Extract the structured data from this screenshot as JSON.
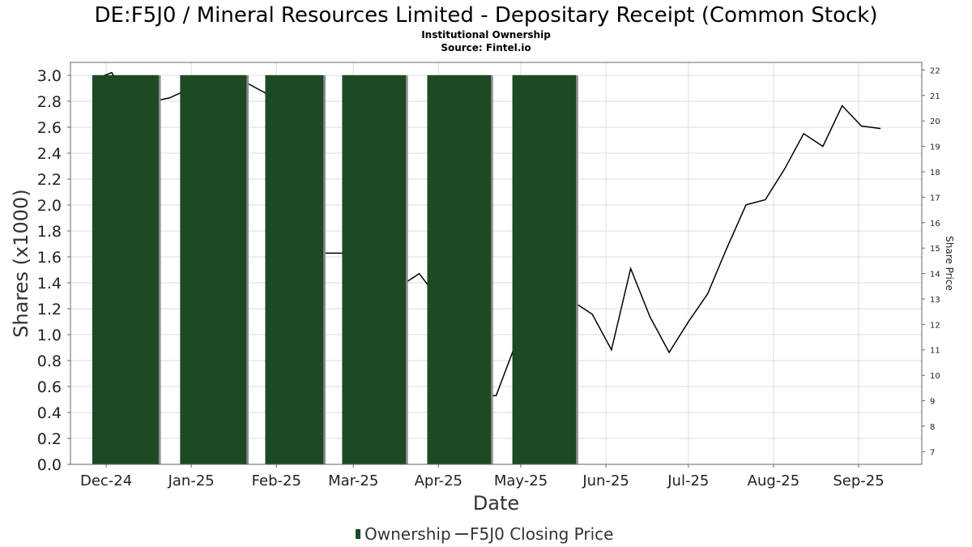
{
  "header": {
    "title": "DE:F5J0 / Mineral Resources Limited - Depositary Receipt (Common Stock)",
    "subtitle": "Institutional Ownership",
    "source": "Source: Fintel.io"
  },
  "legend": {
    "ownership_label": "Ownership",
    "price_label": "F5J0 Closing Price"
  },
  "colors": {
    "bar_fill": "#1d4a24",
    "bar_shadow": "#8a8a8a",
    "price_line": "#000000"
  },
  "chart_data": {
    "type": "bar",
    "title": "DE:F5J0 / Mineral Resources Limited - Depositary Receipt (Common Stock)",
    "xlabel": "Date",
    "ylabel": "Shares (x1000)",
    "y2label": "Share Price",
    "ylim": [
      0,
      3.1
    ],
    "y2lim": [
      6.5,
      22.3
    ],
    "xlim": [
      "2024-11-18",
      "2025-09-24"
    ],
    "grid": true,
    "legend_position": "bottom",
    "x_ticks": [
      {
        "date": "2024-12-01",
        "label": "Dec-24"
      },
      {
        "date": "2025-01-01",
        "label": "Jan-25"
      },
      {
        "date": "2025-02-01",
        "label": "Feb-25"
      },
      {
        "date": "2025-03-01",
        "label": "Mar-25"
      },
      {
        "date": "2025-04-01",
        "label": "Apr-25"
      },
      {
        "date": "2025-05-01",
        "label": "May-25"
      },
      {
        "date": "2025-06-01",
        "label": "Jun-25"
      },
      {
        "date": "2025-07-01",
        "label": "Jul-25"
      },
      {
        "date": "2025-08-01",
        "label": "Aug-25"
      },
      {
        "date": "2025-09-01",
        "label": "Sep-25"
      }
    ],
    "y_ticks": [
      "0.0",
      "0.2",
      "0.4",
      "0.6",
      "0.8",
      "1.0",
      "1.2",
      "1.4",
      "1.6",
      "1.8",
      "2.0",
      "2.2",
      "2.4",
      "2.6",
      "2.8",
      "3.0"
    ],
    "y2_ticks": [
      "7",
      "8",
      "9",
      "10",
      "11",
      "12",
      "13",
      "14",
      "15",
      "16",
      "17",
      "18",
      "19",
      "20",
      "21",
      "22"
    ],
    "series": [
      {
        "name": "Ownership",
        "type": "bar",
        "bars": [
          {
            "start": "2024-11-26",
            "end": "2024-12-20",
            "value": 3.0
          },
          {
            "start": "2024-12-28",
            "end": "2025-01-21",
            "value": 3.0
          },
          {
            "start": "2025-01-28",
            "end": "2025-02-18",
            "value": 3.0
          },
          {
            "start": "2025-02-25",
            "end": "2025-03-20",
            "value": 3.0
          },
          {
            "start": "2025-03-28",
            "end": "2025-04-20",
            "value": 3.0
          },
          {
            "start": "2025-04-28",
            "end": "2025-05-21",
            "value": 3.0
          }
        ]
      },
      {
        "name": "F5J0 Closing Price",
        "type": "line",
        "points": [
          [
            "2024-11-26",
            21.6
          ],
          [
            "2024-12-03",
            21.9
          ],
          [
            "2024-12-10",
            20.6
          ],
          [
            "2024-12-24",
            20.9
          ],
          [
            "2025-01-07",
            21.6
          ],
          [
            "2025-01-14",
            21.5
          ],
          [
            "2025-01-21",
            21.5
          ],
          [
            "2025-01-28",
            21.1
          ],
          [
            "2025-02-04",
            20.4
          ],
          [
            "2025-02-11",
            15.0
          ],
          [
            "2025-02-18",
            14.8
          ],
          [
            "2025-02-25",
            14.8
          ],
          [
            "2025-03-04",
            13.2
          ],
          [
            "2025-03-11",
            13.0
          ],
          [
            "2025-03-18",
            13.5
          ],
          [
            "2025-03-25",
            14.0
          ],
          [
            "2025-04-01",
            13.0
          ],
          [
            "2025-04-08",
            11.5
          ],
          [
            "2025-04-15",
            9.2
          ],
          [
            "2025-04-22",
            9.2
          ],
          [
            "2025-04-29",
            11.2
          ],
          [
            "2025-05-06",
            11.3
          ],
          [
            "2025-05-13",
            12.9
          ],
          [
            "2025-05-20",
            12.9
          ],
          [
            "2025-05-27",
            12.4
          ],
          [
            "2025-06-03",
            11.0
          ],
          [
            "2025-06-10",
            14.2
          ],
          [
            "2025-06-17",
            12.3
          ],
          [
            "2025-06-24",
            10.9
          ],
          [
            "2025-07-01",
            12.1
          ],
          [
            "2025-07-08",
            13.2
          ],
          [
            "2025-07-15",
            15.0
          ],
          [
            "2025-07-22",
            16.7
          ],
          [
            "2025-07-29",
            16.9
          ],
          [
            "2025-08-05",
            18.1
          ],
          [
            "2025-08-12",
            19.5
          ],
          [
            "2025-08-19",
            19.0
          ],
          [
            "2025-08-26",
            20.6
          ],
          [
            "2025-09-02",
            19.8
          ],
          [
            "2025-09-09",
            19.7
          ]
        ]
      }
    ]
  }
}
